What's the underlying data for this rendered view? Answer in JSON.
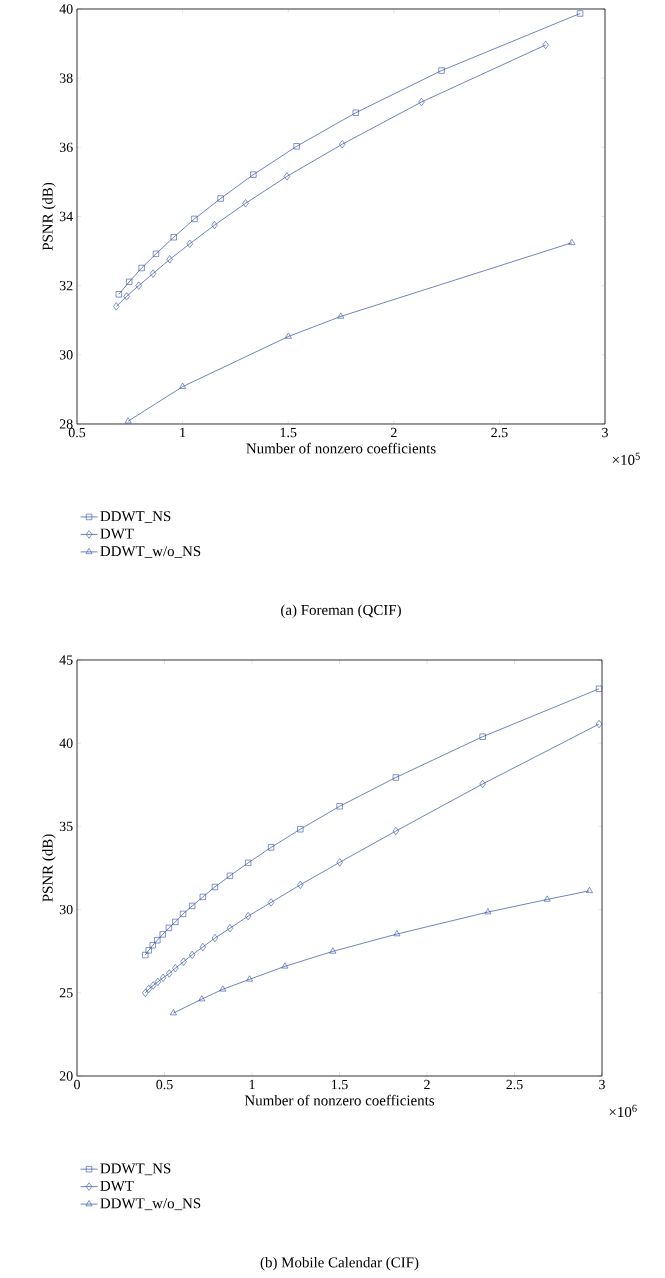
{
  "chart_data": [
    {
      "type": "line",
      "title": "(a) Foreman (QCIF)",
      "xlabel": "Number of nonzero coefficients",
      "ylabel": "PSNR (dB)",
      "annotations": [
        "×10$^{5}$"
      ],
      "xlim": [
        0.5,
        3
      ],
      "ylim": [
        28,
        40
      ],
      "xticks": [
        0.5,
        1,
        1.5,
        2,
        2.5,
        3
      ],
      "yticks": [
        28,
        30,
        32,
        34,
        36,
        38,
        40
      ],
      "legend": "bottom",
      "line_style": "solid",
      "series": [
        {
          "name": "DDWT_NS",
          "color": "#2f4fa6",
          "marker": "square",
          "x": [
            0.698,
            0.747,
            0.806,
            0.874,
            0.958,
            1.056,
            1.18,
            1.335,
            1.54,
            1.82,
            2.226,
            2.882
          ],
          "values": [
            31.75,
            32.11,
            32.51,
            32.92,
            33.4,
            33.93,
            34.52,
            35.21,
            36.03,
            37.0,
            38.22,
            39.87
          ]
        },
        {
          "name": "DWT",
          "color": "#2f4fa6",
          "marker": "diamond",
          "x": [
            0.686,
            0.735,
            0.792,
            0.86,
            0.939,
            1.034,
            1.151,
            1.298,
            1.494,
            1.756,
            2.131,
            2.719
          ],
          "values": [
            31.4,
            31.69,
            32.0,
            32.35,
            32.76,
            33.21,
            33.75,
            34.38,
            35.16,
            36.09,
            37.31,
            38.96
          ]
        },
        {
          "name": "DDWT_w/o_NS",
          "color": "#2f4fa6",
          "marker": "triangle",
          "x": [
            0.742,
            1.0,
            1.501,
            1.749,
            2.843
          ],
          "values": [
            28.08,
            29.08,
            30.53,
            31.11,
            33.24
          ]
        }
      ]
    },
    {
      "type": "line",
      "title": "(b) Mobile Calendar (CIF)",
      "xlabel": "Number of nonzero coefficients",
      "ylabel": "PSNR (dB)",
      "annotations": [
        "×10$^{6}$"
      ],
      "xlim": [
        0,
        3
      ],
      "ylim": [
        20,
        45
      ],
      "xticks": [
        0,
        0.5,
        1,
        1.5,
        2,
        2.5,
        3
      ],
      "yticks": [
        20,
        25,
        30,
        35,
        40,
        45
      ],
      "legend": "bottom",
      "line_style": "solid",
      "series": [
        {
          "name": "DDWT_NS",
          "color": "#2f4fa6",
          "marker": "square",
          "x": [
            0.39,
            0.41,
            0.433,
            0.459,
            0.49,
            0.525,
            0.562,
            0.606,
            0.658,
            0.719,
            0.788,
            0.874,
            0.978,
            1.109,
            1.276,
            1.501,
            1.822,
            2.318,
            2.983
          ],
          "values": [
            27.27,
            27.55,
            27.86,
            28.16,
            28.51,
            28.9,
            29.26,
            29.74,
            30.22,
            30.76,
            31.36,
            32.03,
            32.81,
            33.74,
            34.83,
            36.21,
            37.94,
            40.39,
            43.27
          ]
        },
        {
          "name": "DWT",
          "color": "#2f4fa6",
          "marker": "diamond",
          "x": [
            0.39,
            0.41,
            0.435,
            0.462,
            0.492,
            0.527,
            0.562,
            0.609,
            0.658,
            0.719,
            0.788,
            0.874,
            0.978,
            1.109,
            1.276,
            1.501,
            1.822,
            2.318,
            2.983
          ],
          "values": [
            24.99,
            25.23,
            25.44,
            25.66,
            25.9,
            26.16,
            26.48,
            26.87,
            27.28,
            27.75,
            28.29,
            28.88,
            29.61,
            30.43,
            31.49,
            32.84,
            34.72,
            37.55,
            41.15
          ]
        },
        {
          "name": "DDWT_w/o_NS",
          "color": "#2f4fa6",
          "marker": "triangle",
          "x": [
            0.551,
            0.713,
            0.833,
            0.986,
            1.188,
            1.462,
            1.828,
            2.348,
            2.687,
            2.928
          ],
          "values": [
            23.78,
            24.62,
            25.21,
            25.81,
            26.59,
            27.49,
            28.53,
            29.85,
            30.61,
            31.13
          ]
        }
      ]
    }
  ]
}
